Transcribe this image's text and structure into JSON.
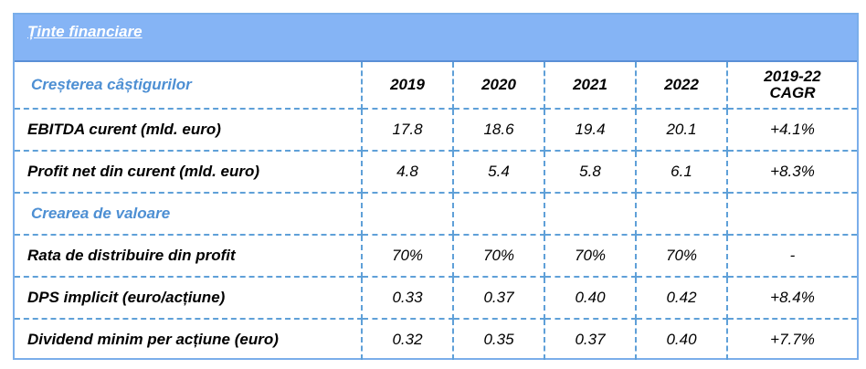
{
  "header": {
    "title": "Ținte financiare"
  },
  "table": {
    "section1": "Creșterea câștigurilor",
    "years": [
      "2019",
      "2020",
      "2021",
      "2022"
    ],
    "cagr_header": [
      "2019-22",
      "CAGR"
    ],
    "rows_earnings": [
      {
        "label": "EBITDA curent (mld. euro)",
        "values": [
          "17.8",
          "18.6",
          "19.4",
          "20.1"
        ],
        "cagr": "+4.1%"
      },
      {
        "label": "Profit net din curent  (mld. euro)",
        "values": [
          "4.8",
          "5.4",
          "5.8",
          "6.1"
        ],
        "cagr": "+8.3%"
      }
    ],
    "section2": "Crearea de valoare",
    "rows_value": [
      {
        "label": "Rata de distribuire din profit",
        "values": [
          "70%",
          "70%",
          "70%",
          "70%"
        ],
        "cagr": "-"
      },
      {
        "label": "DPS implicit (euro/acțiune)",
        "values": [
          "0.33",
          "0.37",
          "0.40",
          "0.42"
        ],
        "cagr": "+8.4%"
      },
      {
        "label": "Dividend minim per acțiune (euro)",
        "values": [
          "0.32",
          "0.35",
          "0.37",
          "0.40"
        ],
        "cagr": "+7.7%"
      }
    ]
  }
}
